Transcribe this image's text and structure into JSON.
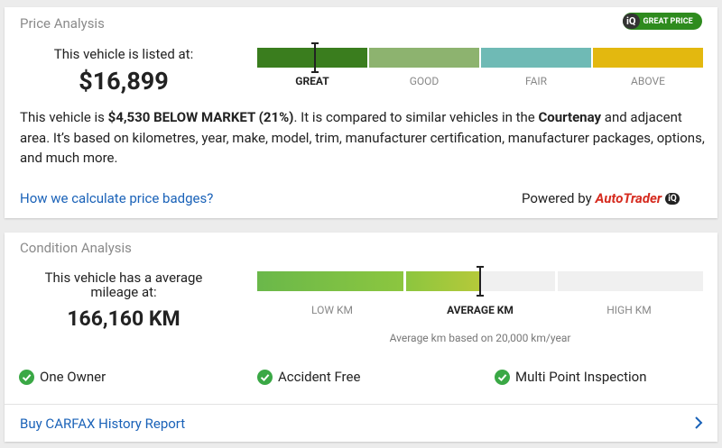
{
  "price_analysis": {
    "title": "Price Analysis",
    "badge": {
      "logo": "iQ",
      "label": "GREAT PRICE"
    },
    "listed_label": "This vehicle is listed at:",
    "price": "$16,899",
    "scale": [
      "GREAT",
      "GOOD",
      "FAIR",
      "ABOVE"
    ],
    "description": [
      "This vehicle is ",
      "$4,530 BELOW MARKET (21%)",
      ". It is compared to similar vehicles in the ",
      "Courtenay",
      " and adjacent area. It’s based on kilometres, year, make, model, trim, manufacturer certification, manufacturer packages, options, and much more."
    ],
    "link": "How we calculate price badges?",
    "powered_by": "Powered by",
    "brand": "AutoTrader",
    "brand_suffix": "iQ"
  },
  "condition_analysis": {
    "title": "Condition Analysis",
    "mileage_label": "This vehicle has a average mileage at:",
    "mileage": "166,160 KM",
    "scale": [
      "LOW KM",
      "AVERAGE KM",
      "HIGH KM"
    ],
    "note": "Average km based on 20,000 km/year",
    "features": [
      "One Owner",
      "Accident Free",
      "Multi Point Inspection"
    ],
    "link": "Buy CARFAX History Report"
  }
}
